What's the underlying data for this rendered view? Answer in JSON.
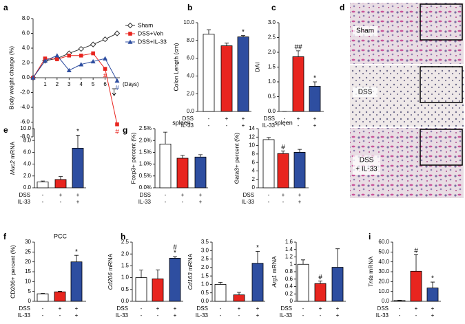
{
  "chart_data": [
    {
      "type": "line",
      "label": "a",
      "y_label": "Body weight change (%)",
      "x_label": "(Days)",
      "x": [
        0,
        1,
        2,
        3,
        4,
        5,
        6,
        7
      ],
      "xlim": [
        0,
        7
      ],
      "xticks": [
        1,
        2,
        3,
        4,
        5,
        6
      ],
      "ylim": [
        -8,
        8
      ],
      "yticks": [
        {
          "value": -8,
          "label": "-8.0"
        },
        {
          "value": -6,
          "label": "-6.0"
        },
        {
          "value": -4,
          "label": "-4.0"
        },
        {
          "value": -2,
          "label": "-2.0"
        },
        {
          "value": 0,
          "label": "0.0"
        },
        {
          "value": 2,
          "label": "2.0"
        },
        {
          "value": 4,
          "label": "4.0"
        },
        {
          "value": 6,
          "label": "6.0"
        },
        {
          "value": 8,
          "label": "8.0"
        }
      ],
      "series": [
        {
          "name": "Sham",
          "color": "#333333",
          "marker": "diamond",
          "values": [
            0,
            2.3,
            2.6,
            3.3,
            3.9,
            4.5,
            5.2,
            6.0
          ]
        },
        {
          "name": "DSS+Veh",
          "color": "#e8251f",
          "marker": "square",
          "values": [
            0,
            2.6,
            2.5,
            3.0,
            3.0,
            3.3,
            1.2,
            -6.3
          ],
          "point_labels": [
            null,
            null,
            null,
            null,
            null,
            null,
            "#",
            "#"
          ]
        },
        {
          "name": "DSS+IL-33",
          "color": "#2e4ea0",
          "marker": "triangle",
          "values": [
            0,
            2.3,
            3.0,
            1.0,
            1.8,
            2.2,
            2.6,
            -0.4
          ],
          "point_labels": [
            null,
            null,
            null,
            null,
            null,
            null,
            null,
            "#"
          ]
        }
      ]
    },
    {
      "type": "bar",
      "label": "b",
      "y_label": "Colon Length (cm)",
      "ylim": [
        0,
        10
      ],
      "yticks": [
        {
          "value": 0,
          "label": "0.0"
        },
        {
          "value": 2,
          "label": "2.0"
        },
        {
          "value": 4,
          "label": "4.0"
        },
        {
          "value": 6,
          "label": "6.0"
        },
        {
          "value": 8,
          "label": "8.0"
        },
        {
          "value": 10,
          "label": "10.0"
        }
      ],
      "values": [
        8.7,
        7.4,
        8.4
      ],
      "errors": [
        0.5,
        0.3,
        0.15
      ],
      "colors": [
        "#ffffff",
        "#e8251f",
        "#2e4ea0"
      ],
      "sig": [
        [],
        [],
        [
          "*"
        ]
      ],
      "treatments": [
        {
          "name": "DSS",
          "values": [
            "-",
            "+",
            "+"
          ]
        },
        {
          "name": "IL-33",
          "values": [
            "-",
            "-",
            "+"
          ]
        }
      ]
    },
    {
      "type": "bar",
      "label": "c",
      "y_label": "DAI",
      "ylim": [
        0,
        3
      ],
      "yticks": [
        {
          "value": 0,
          "label": "0.0"
        },
        {
          "value": 0.5,
          "label": "0.5"
        },
        {
          "value": 1,
          "label": "1.0"
        },
        {
          "value": 1.5,
          "label": "1.5"
        },
        {
          "value": 2,
          "label": "2.0"
        },
        {
          "value": 2.5,
          "label": "2.5"
        },
        {
          "value": 3,
          "label": "3.0"
        }
      ],
      "values": [
        0,
        1.85,
        0.85
      ],
      "errors": [
        0,
        0.2,
        0.15
      ],
      "colors": [
        "#ffffff",
        "#e8251f",
        "#2e4ea0"
      ],
      "sig": [
        [],
        [
          "##"
        ],
        [
          "*"
        ]
      ],
      "treatments": [
        {
          "name": "DSS",
          "values": [
            "-",
            "+",
            "+"
          ]
        },
        {
          "name": "IL-33",
          "values": [
            "-",
            "-",
            "+"
          ]
        }
      ]
    },
    {
      "type": "bar",
      "label": "e",
      "y_label": "Muc2 mRNA",
      "italic_gene": true,
      "ylim": [
        0,
        10
      ],
      "yticks": [
        {
          "value": 0,
          "label": "0.0"
        },
        {
          "value": 2,
          "label": "2.0"
        },
        {
          "value": 4,
          "label": "4.0"
        },
        {
          "value": 6,
          "label": "6.0"
        },
        {
          "value": 8,
          "label": "8.0"
        },
        {
          "value": 10,
          "label": "10.0"
        }
      ],
      "values": [
        1.0,
        1.4,
        6.7
      ],
      "errors": [
        0.15,
        0.5,
        2.2
      ],
      "colors": [
        "#ffffff",
        "#e8251f",
        "#2e4ea0"
      ],
      "sig": [
        [],
        [],
        [
          "*"
        ]
      ],
      "treatments": [
        {
          "name": "DSS",
          "values": [
            "-",
            "+",
            "+"
          ]
        },
        {
          "name": "IL-33",
          "values": [
            "-",
            "-",
            "+"
          ]
        }
      ]
    },
    {
      "type": "bar",
      "label": "g",
      "title": "spleen",
      "y_label": "Foxp3+ percent (%)",
      "ylim": [
        0,
        2.5
      ],
      "yticks": [
        {
          "value": 0,
          "label": "0.0%"
        },
        {
          "value": 0.5,
          "label": "0.5%"
        },
        {
          "value": 1,
          "label": "1.0%"
        },
        {
          "value": 1.5,
          "label": "1.5%"
        },
        {
          "value": 2,
          "label": "2.0%"
        },
        {
          "value": 2.5,
          "label": "2.5%"
        }
      ],
      "values": [
        1.85,
        1.25,
        1.3
      ],
      "errors": [
        0.5,
        0.12,
        0.1
      ],
      "colors": [
        "#ffffff",
        "#e8251f",
        "#2e4ea0"
      ],
      "sig": [
        [],
        [],
        []
      ],
      "treatments": [
        {
          "name": "DSS",
          "values": [
            "-",
            "+",
            "+"
          ]
        },
        {
          "name": "IL-33",
          "values": [
            "-",
            "-",
            "+"
          ]
        }
      ]
    },
    {
      "type": "bar",
      "title": "spleen",
      "y_label": "Gata3+ percent (%)",
      "ylim": [
        0,
        14
      ],
      "yticks": [
        0,
        2,
        4,
        6,
        8,
        10,
        12,
        14
      ],
      "values": [
        11.4,
        8.1,
        8.4
      ],
      "errors": [
        0.5,
        0.6,
        0.7
      ],
      "colors": [
        "#ffffff",
        "#e8251f",
        "#2e4ea0"
      ],
      "sig": [
        [],
        [
          "#"
        ],
        []
      ],
      "treatments": [
        {
          "name": "DSS",
          "values": [
            "-",
            "+",
            "+"
          ]
        },
        {
          "name": "IL-33",
          "values": [
            "-",
            "-",
            "+"
          ]
        }
      ]
    },
    {
      "type": "bar",
      "label": "f",
      "title": "PCC",
      "y_label": "CD206+ percent (%)",
      "ylim": [
        0,
        30
      ],
      "yticks": [
        0,
        5,
        10,
        15,
        20,
        25,
        30
      ],
      "values": [
        3.8,
        4.8,
        20
      ],
      "errors": [
        0.2,
        0.3,
        3.3
      ],
      "colors": [
        "#ffffff",
        "#e8251f",
        "#2e4ea0"
      ],
      "sig": [
        [],
        [],
        [
          "*"
        ]
      ],
      "treatments": [
        {
          "name": "DSS",
          "values": [
            "-",
            "+",
            "+"
          ]
        },
        {
          "name": "IL-33",
          "values": [
            "-",
            "-",
            "+"
          ]
        }
      ]
    },
    {
      "type": "bar",
      "label": "h",
      "y_label": "Cd206 mRNA",
      "italic_gene": true,
      "ylim": [
        0,
        2.5
      ],
      "yticks": [
        {
          "value": 0,
          "label": "0.0"
        },
        {
          "value": 0.5,
          "label": "0.5"
        },
        {
          "value": 1,
          "label": "1.0"
        },
        {
          "value": 1.5,
          "label": "1.5"
        },
        {
          "value": 2,
          "label": "2.0"
        },
        {
          "value": 2.5,
          "label": "2.5"
        }
      ],
      "values": [
        1.0,
        0.95,
        1.82
      ],
      "errors": [
        0.32,
        0.38,
        0.07
      ],
      "colors": [
        "#ffffff",
        "#e8251f",
        "#2e4ea0"
      ],
      "sig": [
        [],
        [],
        [
          "*",
          "#"
        ]
      ],
      "treatments": [
        {
          "name": "DSS",
          "values": [
            "-",
            "+",
            "+"
          ]
        },
        {
          "name": "IL-33",
          "values": [
            "-",
            "-",
            "+"
          ]
        }
      ]
    },
    {
      "type": "bar",
      "y_label": "Cd163 mRNA",
      "italic_gene": true,
      "ylim": [
        0,
        3.5
      ],
      "yticks": [
        {
          "value": 0,
          "label": "0.0"
        },
        {
          "value": 0.5,
          "label": "0.5"
        },
        {
          "value": 1,
          "label": "1.0"
        },
        {
          "value": 1.5,
          "label": "1.5"
        },
        {
          "value": 2,
          "label": "2.0"
        },
        {
          "value": 2.5,
          "label": "2.5"
        },
        {
          "value": 3,
          "label": "3.0"
        },
        {
          "value": 3.5,
          "label": "3.5"
        }
      ],
      "values": [
        1.0,
        0.38,
        2.25
      ],
      "errors": [
        0.12,
        0.15,
        0.7
      ],
      "colors": [
        "#ffffff",
        "#e8251f",
        "#2e4ea0"
      ],
      "sig": [
        [],
        [],
        [
          "*"
        ]
      ],
      "treatments": [
        {
          "name": "DSS",
          "values": [
            "-",
            "+",
            "+"
          ]
        },
        {
          "name": "IL-33",
          "values": [
            "-",
            "-",
            "+"
          ]
        }
      ]
    },
    {
      "type": "bar",
      "y_label": "Arg1 mRNA",
      "italic_gene": true,
      "ylim": [
        0,
        1.6
      ],
      "yticks": [
        0,
        0.2,
        0.4,
        0.6,
        0.8,
        1,
        1.2,
        1.4,
        1.6
      ],
      "values": [
        1.0,
        0.48,
        0.92
      ],
      "errors": [
        0.12,
        0.07,
        0.5
      ],
      "colors": [
        "#ffffff",
        "#e8251f",
        "#2e4ea0"
      ],
      "sig": [
        [],
        [
          "#"
        ],
        []
      ],
      "treatments": [
        {
          "name": "DSS",
          "values": [
            "-",
            "+",
            "+"
          ]
        },
        {
          "name": "IL-33",
          "values": [
            "-",
            "-",
            "+"
          ]
        }
      ]
    },
    {
      "type": "bar",
      "label": "i",
      "y_label": "Tnfa mRNA",
      "italic_gene": true,
      "ylim": [
        0,
        60
      ],
      "yticks": [
        {
          "value": 0,
          "label": "0.0"
        },
        {
          "value": 10,
          "label": "10.0"
        },
        {
          "value": 20,
          "label": "20.0"
        },
        {
          "value": 30,
          "label": "30.0"
        },
        {
          "value": 40,
          "label": "40.0"
        },
        {
          "value": 50,
          "label": "50.0"
        },
        {
          "value": 60,
          "label": "60.0"
        }
      ],
      "values": [
        0.8,
        30.5,
        13.5
      ],
      "errors": [
        0.3,
        17,
        6
      ],
      "colors": [
        "#ffffff",
        "#e8251f",
        "#2e4ea0"
      ],
      "sig": [
        [],
        [
          "#"
        ],
        [
          "*"
        ]
      ],
      "treatments": [
        {
          "name": "DSS",
          "values": [
            "-",
            "+",
            "+"
          ]
        },
        {
          "name": "IL-33",
          "values": [
            "-",
            "-",
            "+"
          ]
        }
      ]
    }
  ],
  "panel_d": {
    "label": "d",
    "rows": [
      [
        "Sham"
      ],
      [
        "DSS"
      ],
      [
        "DSS",
        "+ IL-33"
      ]
    ]
  }
}
